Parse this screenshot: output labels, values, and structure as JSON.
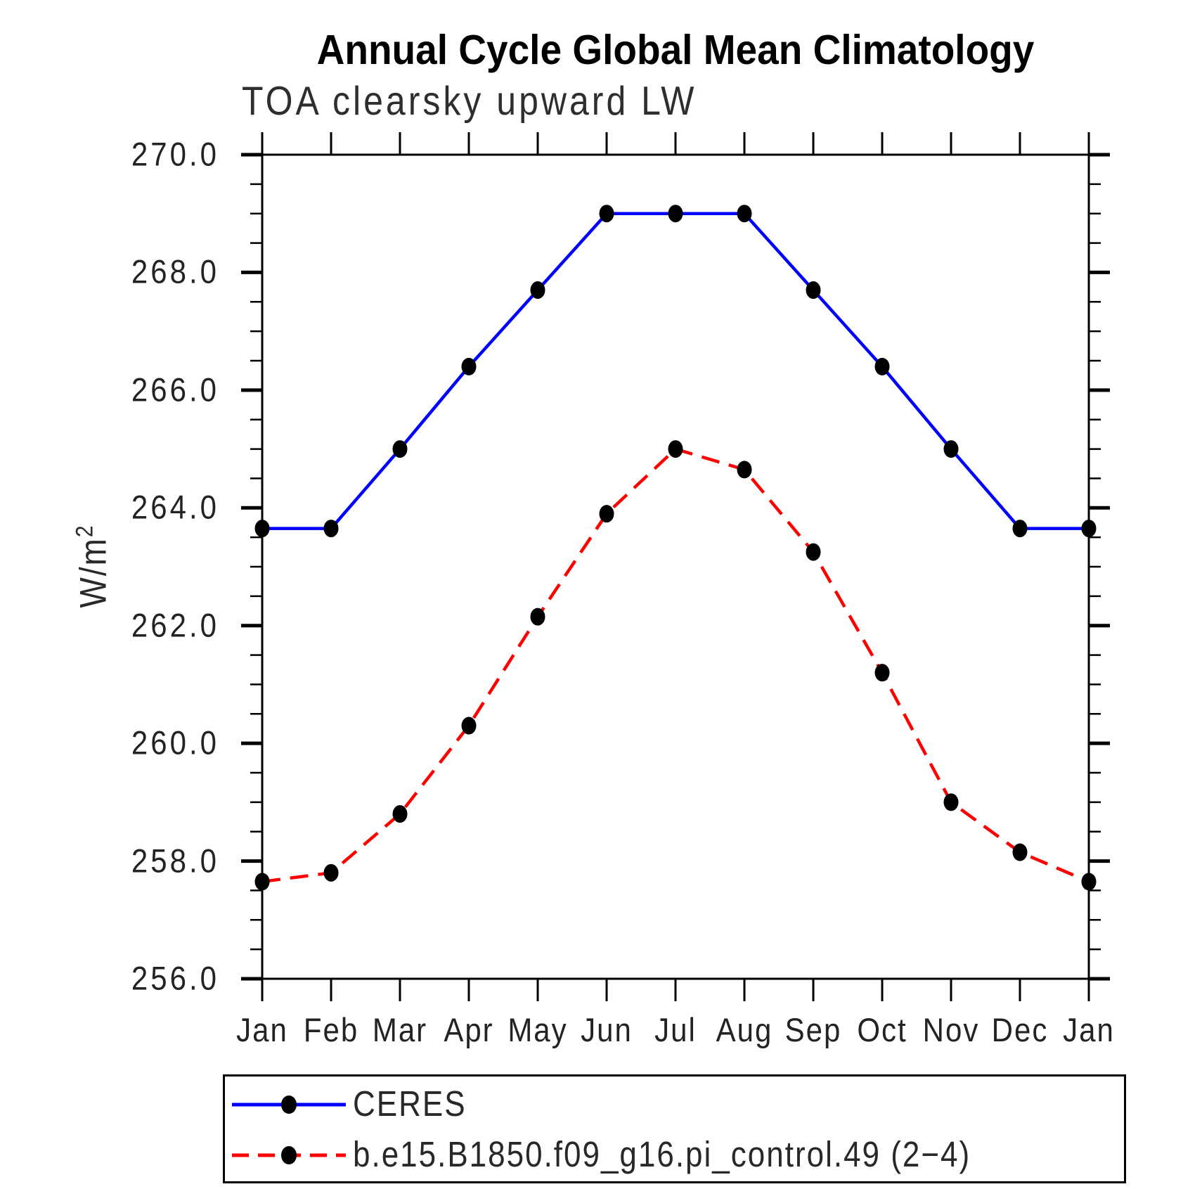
{
  "chart_data": {
    "type": "line",
    "title": "Annual Cycle Global Mean Climatology",
    "subtitle": "TOA clearsky upward LW",
    "ylabel_base": "W/m",
    "ylabel_exp": "2",
    "x_categories": [
      "Jan",
      "Feb",
      "Mar",
      "Apr",
      "May",
      "Jun",
      "Jul",
      "Aug",
      "Sep",
      "Oct",
      "Nov",
      "Dec",
      "Jan"
    ],
    "ylim": [
      256.0,
      270.0
    ],
    "y_major_step": 2.0,
    "y_minor_step": 0.5,
    "y_major_tick_labels": [
      "270.0",
      "268.0",
      "266.0",
      "264.0",
      "262.0",
      "260.0",
      "258.0",
      "256.0"
    ],
    "grid": false,
    "legend_position": "bottom-left",
    "axis_color": "#000000",
    "marker_color": "#000000",
    "series": [
      {
        "name": "CERES",
        "color": "#0000ff",
        "line_style": "solid",
        "marker": "filled-dot",
        "values": [
          263.65,
          263.65,
          265.0,
          266.4,
          267.7,
          269.0,
          269.0,
          269.0,
          267.7,
          266.4,
          265.0,
          263.65,
          263.65
        ]
      },
      {
        "name": "b.e15.B1850.f09_g16.pi_control.49 (2−4)",
        "color": "#ff0000",
        "line_style": "dashed",
        "marker": "filled-dot",
        "values": [
          257.65,
          257.8,
          258.8,
          260.3,
          262.15,
          263.9,
          265.0,
          264.65,
          263.25,
          261.2,
          259.0,
          258.15,
          257.65
        ]
      }
    ]
  }
}
